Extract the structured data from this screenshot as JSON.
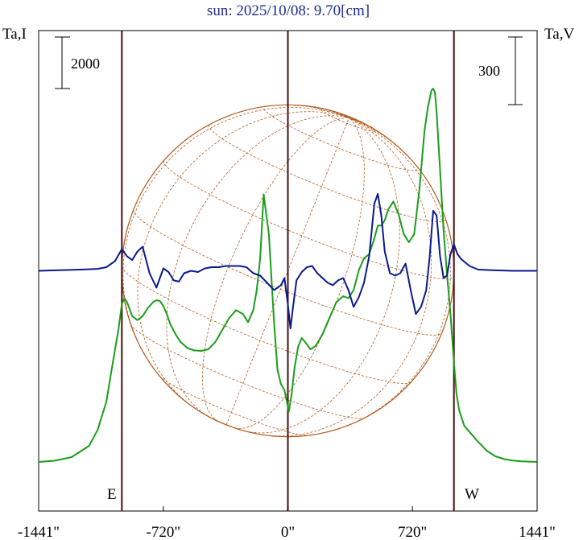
{
  "chart_data": {
    "type": "line",
    "title": "sun: 2025/10/08: 9.70[cm]",
    "left_axis_label": "Ta,I",
    "right_axis_label": "Ta,V",
    "left_scale_bar_label": "2000",
    "right_scale_bar_label": "300",
    "east_label": "E",
    "west_label": "W",
    "x_tick_labels": [
      "-1441\"",
      "-720\"",
      "0\"",
      "720\"",
      "1441\""
    ],
    "x_ticks": [
      -1441,
      -720,
      0,
      720,
      1441
    ],
    "xlim": [
      -1441,
      1441
    ],
    "solar_limb_arcsec": [
      -960,
      960
    ],
    "series": [
      {
        "key": "I",
        "color": "#1a9e1a",
        "x": [
          -1441,
          -1350,
          -1250,
          -1150,
          -1100,
          -1050,
          -1000,
          -980,
          -960,
          -945,
          -930,
          -900,
          -870,
          -840,
          -810,
          -780,
          -760,
          -740,
          -720,
          -700,
          -680,
          -650,
          -620,
          -580,
          -540,
          -500,
          -460,
          -420,
          -380,
          -340,
          -300,
          -260,
          -230,
          -200,
          -180,
          -160,
          -140,
          -110,
          -80,
          -60,
          -40,
          -20,
          -5,
          5,
          20,
          40,
          60,
          80,
          100,
          130,
          160,
          200,
          240,
          280,
          320,
          350,
          380,
          410,
          440,
          470,
          500,
          520,
          540,
          560,
          580,
          610,
          640,
          670,
          700,
          730,
          760,
          790,
          810,
          830,
          840,
          850,
          860,
          880,
          900,
          920,
          940,
          960,
          975,
          990,
          1005,
          1020,
          1050,
          1100,
          1150,
          1200,
          1250,
          1300,
          1350,
          1441
        ],
        "y": [
          0,
          30,
          120,
          400,
          800,
          1500,
          2800,
          3300,
          3950,
          4100,
          4000,
          3650,
          3550,
          3650,
          3850,
          4000,
          4050,
          4030,
          3900,
          3700,
          3450,
          3200,
          3000,
          2850,
          2790,
          2780,
          2820,
          3000,
          3300,
          3600,
          3800,
          3700,
          3500,
          3800,
          4300,
          5100,
          6700,
          5700,
          3500,
          2300,
          1950,
          1800,
          1500,
          1250,
          1650,
          2400,
          2900,
          3100,
          3000,
          2820,
          2900,
          3200,
          3600,
          4000,
          4150,
          4100,
          4300,
          4800,
          5100,
          5200,
          5600,
          5920,
          5920,
          6050,
          6320,
          6520,
          6200,
          5700,
          5500,
          5700,
          6800,
          8300,
          8900,
          9300,
          9350,
          9250,
          8750,
          7300,
          5800,
          4700,
          3700,
          2500,
          1700,
          1300,
          1100,
          900,
          750,
          500,
          280,
          140,
          70,
          35,
          15,
          0
        ]
      },
      {
        "key": "V",
        "color": "#0a1a8c",
        "x": [
          -1441,
          -1300,
          -1200,
          -1100,
          -1050,
          -1000,
          -960,
          -930,
          -900,
          -870,
          -840,
          -800,
          -760,
          -720,
          -690,
          -660,
          -630,
          -600,
          -560,
          -520,
          -480,
          -440,
          -400,
          -360,
          -320,
          -280,
          -240,
          -200,
          -160,
          -120,
          -80,
          -40,
          -20,
          0,
          15,
          30,
          50,
          80,
          110,
          140,
          170,
          200,
          230,
          260,
          290,
          320,
          350,
          380,
          410,
          440,
          470,
          500,
          520,
          540,
          560,
          590,
          620,
          650,
          680,
          710,
          740,
          770,
          800,
          820,
          840,
          860,
          880,
          900,
          920,
          940,
          960,
          980,
          1000,
          1050,
          1100,
          1200,
          1300,
          1441
        ],
        "y": [
          0,
          3,
          5,
          8,
          15,
          40,
          90,
          60,
          45,
          80,
          100,
          -10,
          -70,
          10,
          -5,
          -40,
          -45,
          -10,
          0,
          -5,
          10,
          15,
          15,
          20,
          20,
          20,
          15,
          -10,
          -20,
          -50,
          -80,
          -60,
          -30,
          -140,
          -240,
          -150,
          -40,
          -5,
          15,
          20,
          -10,
          -30,
          -50,
          -60,
          -40,
          -30,
          -80,
          -150,
          -110,
          -50,
          60,
          280,
          320,
          230,
          80,
          -10,
          -20,
          -10,
          30,
          -80,
          -180,
          -150,
          -80,
          60,
          250,
          230,
          60,
          -30,
          -20,
          70,
          110,
          70,
          50,
          20,
          5,
          2,
          0,
          0
        ]
      }
    ],
    "i_axis": {
      "range": [
        -1230,
        10800
      ],
      "scale_bar": 2000
    },
    "v_axis": {
      "range": [
        -1000,
        1000
      ],
      "scale_bar": 300
    }
  }
}
